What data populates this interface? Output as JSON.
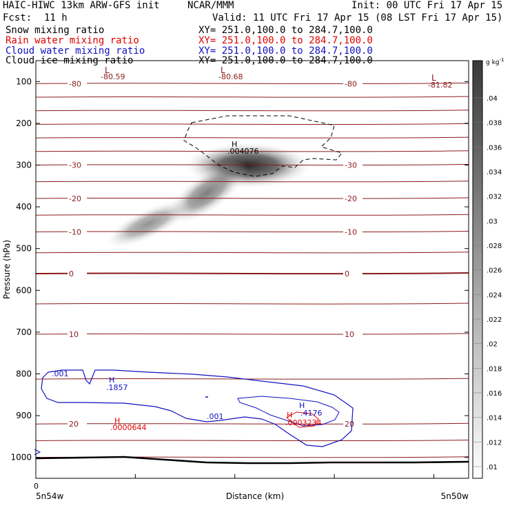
{
  "header": {
    "title": "HAIC-HIWC 13km ARW-GFS init",
    "org": "NCAR/MMM",
    "init": "Init: 00 UTC Fri 17 Apr 15",
    "fcst_label": "Fcst:",
    "fcst_value": "11 h",
    "valid": "Valid: 11 UTC Fri 17 Apr 15 (08 LST Fri 17 Apr 15)"
  },
  "fields": [
    {
      "name": "Snow mixing ratio",
      "xy": "XY= 251.0,100.0 to 284.7,100.0",
      "color": "#000000"
    },
    {
      "name": "Rain water mixing ratio",
      "xy": "XY= 251.0,100.0 to 284.7,100.0",
      "color": "#e00000"
    },
    {
      "name": "Cloud water mixing ratio",
      "xy": "XY= 251.0,100.0 to 284.7,100.0",
      "color": "#1010c0"
    },
    {
      "name": "Cloud ice mixing ratio",
      "xy": "XY= 251.0,100.0 to 284.7,100.0",
      "color": "#000000"
    }
  ],
  "colors": {
    "temperature_contour": "#8b1a1a",
    "rain_contour": "#e00000",
    "cloud_water_contour": "#1010c0",
    "cloud_ice_contour": "#000000",
    "shading_max": "#2a2a2a"
  },
  "chart_data": {
    "type": "heatmap",
    "title": "",
    "xlabel": "Distance (km)",
    "ylabel": "Pressure (hPa)",
    "x_range": [
      0,
      1
    ],
    "ylim": [
      1050,
      50
    ],
    "y_ticks": [
      100,
      200,
      300,
      400,
      500,
      600,
      700,
      800,
      900,
      1000
    ],
    "x_tick_zero": "0",
    "x_left_label": "5n54w",
    "x_right_label": "5n50w",
    "colorbar": {
      "unit": "g kg",
      "unit_sup": "-1",
      "levels": [
        ".01",
        ".012",
        ".014",
        ".016",
        ".018",
        ".02",
        ".022",
        ".024",
        ".026",
        ".028",
        ".03",
        ".032",
        ".034",
        ".036",
        ".038",
        ".04"
      ]
    },
    "temperature_contours": [
      {
        "label": "-80",
        "p": 105
      },
      {
        "label": "-30",
        "p": 300
      },
      {
        "label": "-20",
        "p": 380
      },
      {
        "label": "-10",
        "p": 460
      },
      {
        "label": "0",
        "p": 560
      },
      {
        "label": "10",
        "p": 705
      },
      {
        "label": "20",
        "p": 920
      }
    ],
    "temperature_extrema": [
      {
        "kind": "L",
        "value": "-80.59",
        "x": 0.17,
        "p": 98
      },
      {
        "kind": "L",
        "value": "-80.68",
        "x": 0.47,
        "p": 98
      },
      {
        "kind": "L",
        "value": "-81.82",
        "x": 0.92,
        "p": 105
      }
    ],
    "snow_max": {
      "kind": "H",
      "value": ".0000644",
      "x": 0.19,
      "p": 905
    },
    "rain_max": {
      "kind": "H",
      "value": ".0003234",
      "x": 0.6,
      "p": 898
    },
    "cloud_water_max": [
      {
        "kind": "H",
        "value": ".1857",
        "x": 0.17,
        "p": 818
      },
      {
        "kind": "H",
        "value": ".4176",
        "x": 0.63,
        "p": 875
      }
    ],
    "cloud_water_contour_labels": [
      ".001",
      ".001"
    ],
    "cloud_ice_max": {
      "kind": "H",
      "value": ".004076",
      "x": 0.46,
      "p": 262
    }
  }
}
